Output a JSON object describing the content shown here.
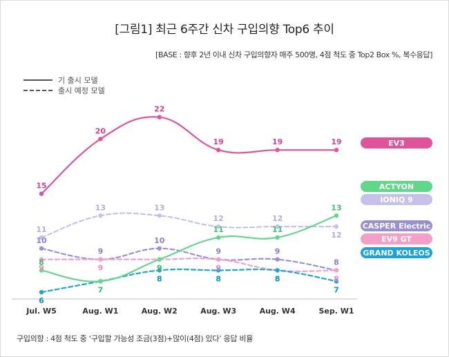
{
  "title": "[그림1] 최근 6주간 신차 구입의향 Top6 추이",
  "base_note": "[BASE : 향후 2년 이내 신차 구입의향자 매주 500명, 4점 척도 중 Top2 Box %, 복수응답]",
  "legend": {
    "solid_label": "기 출시 모델",
    "dashed_label": "출시 예정 모델"
  },
  "footnote": "구입의향 : 4점 척도 중 ‘구입할 가능성 조금(3점)+많이(4점) 있다’ 응답 비율",
  "chart_data": {
    "type": "line",
    "title": "[그림1] 최근 6주간 신차 구입의향 Top6 추이",
    "categories": [
      "Jul. W5",
      "Aug. W1",
      "Aug. W2",
      "Aug. W3",
      "Aug. W4",
      "Sep. W1"
    ],
    "ylim": [
      5,
      24
    ],
    "grid": false,
    "legend_position": "right",
    "series": [
      {
        "name": "EV3",
        "values": [
          15,
          20,
          22,
          19,
          19,
          19
        ],
        "color": "#e0529a",
        "label_color": "#d9418b",
        "style": "solid"
      },
      {
        "name": "ACTYON",
        "values": [
          8,
          7,
          9,
          11,
          11,
          13
        ],
        "color": "#5fd889",
        "label_color": "#3ec26a",
        "style": "solid"
      },
      {
        "name": "IONIQ 9",
        "values": [
          11,
          13,
          13,
          12,
          12,
          12
        ],
        "color": "#c7c1ea",
        "label_color": "#b3abdd",
        "style": "dashed"
      },
      {
        "name": "CASPER Electric",
        "values": [
          10,
          9,
          10,
          9,
          9,
          8
        ],
        "color": "#9b8fd4",
        "label_color": "#8a7ec9",
        "style": "dashed"
      },
      {
        "name": "EV9 GT",
        "values": [
          9,
          9,
          9,
          9,
          8,
          8
        ],
        "color": "#f3a0c6",
        "label_color": "#ee8bb8",
        "style": "dashed"
      },
      {
        "name": "GRAND KOLEOS",
        "values": [
          6,
          7,
          8,
          8,
          8,
          7
        ],
        "color": "#1aa3d6",
        "label_color": "#0b93c9",
        "style": "dashed"
      }
    ]
  }
}
